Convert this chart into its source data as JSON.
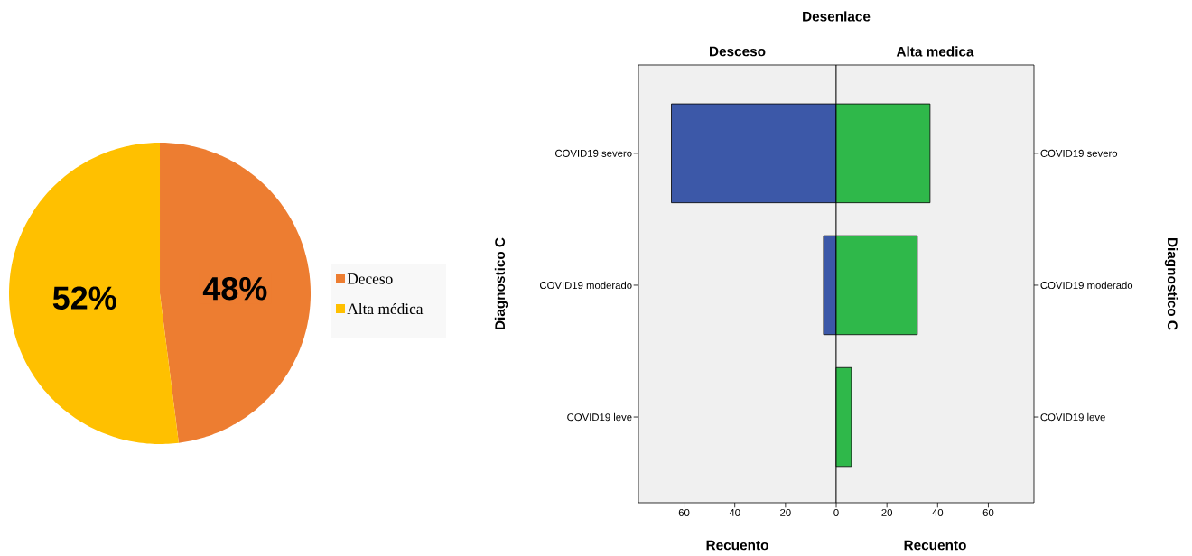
{
  "chart_data": [
    {
      "type": "pie",
      "categories": [
        "Deceso",
        "Alta médica"
      ],
      "values": [
        48,
        52
      ],
      "colors": [
        "#ed7d31",
        "#ffc000"
      ],
      "value_labels": [
        "48%",
        "52%"
      ],
      "legend": "right"
    },
    {
      "type": "bar",
      "orientation": "horizontal",
      "title": "Desceso",
      "annotations": [
        "Desenlace"
      ],
      "xlabel": "Recuento",
      "ylabel": "Diagnostico C",
      "categories": [
        "COVID19 severo",
        "COVID19 moderado",
        "COVID19 leve"
      ],
      "series": [
        {
          "color": "#3c58a8",
          "values": [
            65,
            5,
            0
          ]
        }
      ],
      "xlim": [
        78,
        0
      ],
      "xticks": [
        60,
        40,
        20
      ]
    },
    {
      "type": "bar",
      "orientation": "horizontal",
      "title": "Alta medica",
      "xlabel": "Recuento",
      "y2label": "Diagnostico C",
      "categories": [
        "COVID19 severo",
        "COVID19 moderado",
        "COVID19 leve"
      ],
      "series": [
        {
          "color": "#2fb84a",
          "values": [
            37,
            32,
            6
          ]
        }
      ],
      "xlim": [
        0,
        78
      ],
      "xticks": [
        0,
        20,
        40,
        60
      ]
    }
  ]
}
